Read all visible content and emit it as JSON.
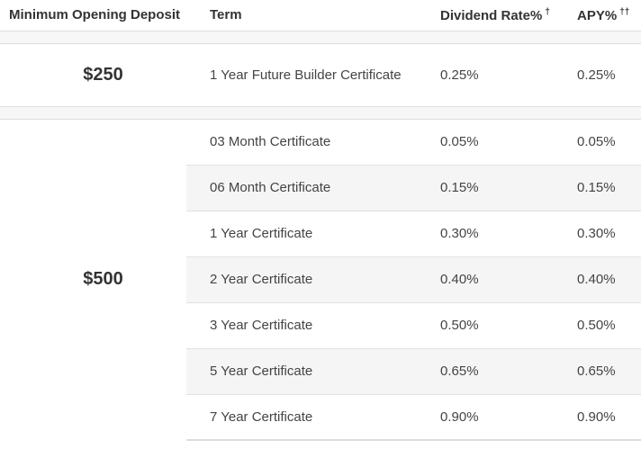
{
  "table": {
    "headers": [
      {
        "label": "Minimum Opening Deposit",
        "sup": ""
      },
      {
        "label": "Term",
        "sup": ""
      },
      {
        "label": "Dividend Rate%",
        "sup": "†"
      },
      {
        "label": "APY%",
        "sup": "††"
      }
    ],
    "sections": [
      {
        "deposit": "$250",
        "rows": [
          {
            "term": "1 Year Future Builder Certificate",
            "dividend_rate": "0.25%",
            "apy": "0.25%"
          }
        ]
      },
      {
        "deposit": "$500",
        "rows": [
          {
            "term": "03 Month Certificate",
            "dividend_rate": "0.05%",
            "apy": "0.05%"
          },
          {
            "term": "06 Month Certificate",
            "dividend_rate": "0.15%",
            "apy": "0.15%"
          },
          {
            "term": "1 Year Certificate",
            "dividend_rate": "0.30%",
            "apy": "0.30%"
          },
          {
            "term": "2 Year Certificate",
            "dividend_rate": "0.40%",
            "apy": "0.40%"
          },
          {
            "term": "3 Year Certificate",
            "dividend_rate": "0.50%",
            "apy": "0.50%"
          },
          {
            "term": "5 Year Certificate",
            "dividend_rate": "0.65%",
            "apy": "0.65%"
          },
          {
            "term": "7 Year Certificate",
            "dividend_rate": "0.90%",
            "apy": "0.90%"
          }
        ]
      }
    ],
    "colors": {
      "stripe_bg": "#f5f5f5",
      "spacer_bg": "#f7f7f7",
      "border": "#dddddd",
      "row_divider": "#e1e1e1",
      "header_text": "#333333",
      "body_text": "#444444"
    }
  }
}
